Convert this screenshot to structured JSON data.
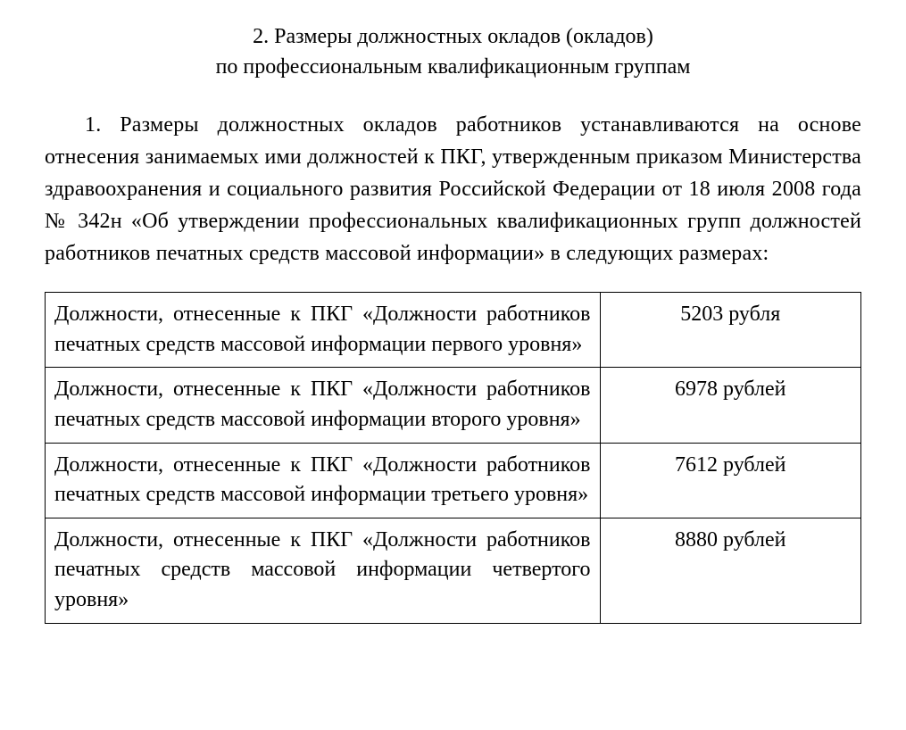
{
  "heading_line1": "2. Размеры должностных окладов (окладов)",
  "heading_line2": "по профессиональным квалификационным группам",
  "paragraph": "1. Размеры должностных окладов работников устанавливаются на основе отнесения занимаемых ими должностей к ПКГ, утвержденным приказом Министерства здравоохранения и социального развития Российской Федерации от 18 июля 2008 года № 342н «Об утверждении профессиональных квалификационных групп должностей работников печатных средств массовой информации» в следующих размерах:",
  "table": {
    "border_color": "#000000",
    "columns": [
      {
        "key": "description",
        "align": "justify",
        "width_pct": 68
      },
      {
        "key": "amount",
        "align": "center",
        "width_pct": 32
      }
    ],
    "rows": [
      {
        "description": "Должности, отнесенные к ПКГ «Должности работников печатных средств массовой информации первого уровня»",
        "amount": "5203 рубля"
      },
      {
        "description": "Должности, отнесенные к ПКГ «Должности работников печатных средств массовой информации второго уровня»",
        "amount": "6978 рублей"
      },
      {
        "description": "Должности, отнесенные к ПКГ «Должности работников печатных средств массовой информации третьего уровня»",
        "amount": "7612 рублей"
      },
      {
        "description": "Должности, отнесенные к ПКГ «Должности работников печатных средств массовой информации четвертого уровня»",
        "amount": "8880 рублей"
      }
    ]
  },
  "style": {
    "font_family": "Times New Roman",
    "font_size_pt": 18,
    "text_color": "#000000",
    "background_color": "#ffffff"
  }
}
